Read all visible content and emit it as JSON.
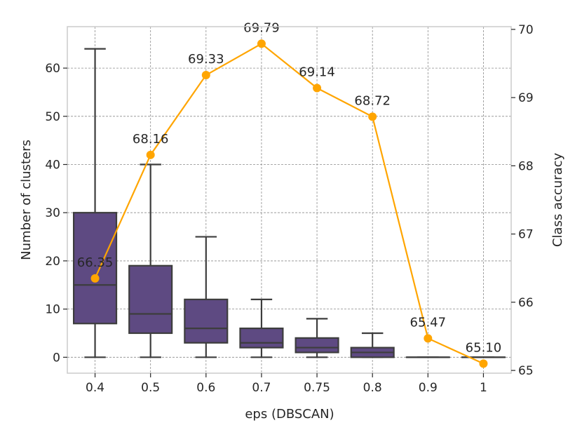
{
  "chart_data": {
    "type": "box+line",
    "categories": [
      "0.4",
      "0.5",
      "0.6",
      "0.7",
      "0.75",
      "0.8",
      "0.9",
      "1"
    ],
    "xlabel": "eps (DBSCAN)",
    "ylabel_left": "Number of clusters",
    "ylabel_right": "Class accuracy",
    "ylim_left": [
      -3.3,
      68.6
    ],
    "ylim_right": [
      64.96,
      70.04
    ],
    "yticks_left": [
      0,
      10,
      20,
      30,
      40,
      50,
      60
    ],
    "yticks_right": [
      65,
      66,
      67,
      68,
      69,
      70
    ],
    "grid": true,
    "boxes": [
      {
        "category": "0.4",
        "whisker_low": 0,
        "q1": 7,
        "median": 15,
        "q3": 30,
        "whisker_high": 64
      },
      {
        "category": "0.5",
        "whisker_low": 0,
        "q1": 5,
        "median": 9,
        "q3": 19,
        "whisker_high": 40
      },
      {
        "category": "0.6",
        "whisker_low": 0,
        "q1": 3,
        "median": 6,
        "q3": 12,
        "whisker_high": 25
      },
      {
        "category": "0.7",
        "whisker_low": 0,
        "q1": 2,
        "median": 3,
        "q3": 6,
        "whisker_high": 12
      },
      {
        "category": "0.75",
        "whisker_low": 0,
        "q1": 1,
        "median": 2,
        "q3": 4,
        "whisker_high": 8
      },
      {
        "category": "0.8",
        "whisker_low": 0,
        "q1": 0,
        "median": 1,
        "q3": 2,
        "whisker_high": 5
      },
      {
        "category": "0.9",
        "whisker_low": 0,
        "q1": 0,
        "median": 0,
        "q3": 0,
        "whisker_high": 0
      },
      {
        "category": "1",
        "whisker_low": 0,
        "q1": 0,
        "median": 0,
        "q3": 0,
        "whisker_high": 0
      }
    ],
    "accuracy": {
      "values": [
        66.35,
        68.16,
        69.33,
        69.79,
        69.14,
        68.72,
        65.47,
        65.1
      ],
      "labels": [
        "66.35",
        "68.16",
        "69.33",
        "69.79",
        "69.14",
        "68.72",
        "65.47",
        "65.10"
      ]
    },
    "colors": {
      "box_fill": "#5e4a82",
      "box_edge": "#3d3d3d",
      "line": "#ffa500",
      "grid": "#8c8c8c",
      "spine": "#cccccc",
      "text": "#262626"
    }
  }
}
